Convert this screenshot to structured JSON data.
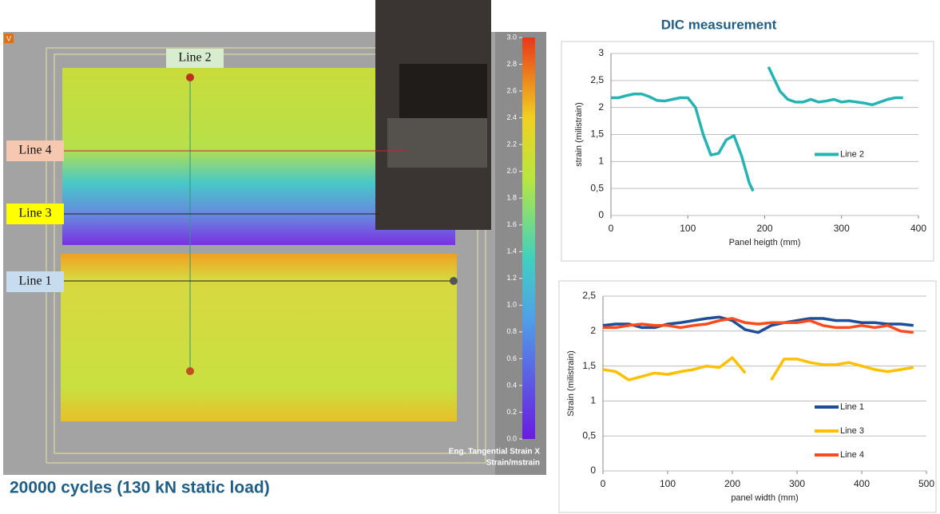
{
  "image": {
    "corner_label": "V",
    "lines": [
      "Line 2",
      "Line 4",
      "Line 3",
      "Line 1"
    ],
    "colorbar": {
      "ticks": [
        {
          "value": 0,
          "label": "0.0"
        },
        {
          "value": 0.2,
          "label": "0.2"
        },
        {
          "value": 0.4,
          "label": "0.4"
        },
        {
          "value": 0.6,
          "label": "0.6"
        },
        {
          "value": 0.8,
          "label": "0.8"
        },
        {
          "value": 1,
          "label": "1.0"
        },
        {
          "value": 1.2,
          "label": "1.2"
        },
        {
          "value": 1.4,
          "label": "1.4"
        },
        {
          "value": 1.6,
          "label": "1.6"
        },
        {
          "value": 1.8,
          "label": "1.8"
        },
        {
          "value": 2,
          "label": "2.0"
        },
        {
          "value": 2.2,
          "label": "2.2"
        },
        {
          "value": 2.4,
          "label": "2.4"
        },
        {
          "value": 2.6,
          "label": "2.6"
        },
        {
          "value": 2.8,
          "label": "2.8"
        },
        {
          "value": 3,
          "label": "3.0"
        }
      ],
      "lim": [
        0,
        3
      ],
      "title": "Eng. Tangential Strain X",
      "unit": "Strain/mstrain"
    },
    "caption": "20000 cycles (130 kN static load)"
  },
  "chart_data": [
    {
      "type": "line",
      "title": "DIC measurement",
      "x_label": "Panel heigth (mm)",
      "y_label": "strain (milistrain)",
      "x": [
        0,
        10,
        20,
        30,
        40,
        50,
        60,
        70,
        80,
        90,
        100,
        110,
        120,
        130,
        140,
        150,
        160,
        170,
        180,
        185,
        195,
        205,
        210,
        220,
        230,
        240,
        250,
        260,
        270,
        280,
        290,
        300,
        310,
        320,
        330,
        340,
        350,
        360,
        370,
        380
      ],
      "series": [
        {
          "name": "Line 2",
          "color": "#26b3b3",
          "values": [
            2.18,
            2.18,
            2.22,
            2.25,
            2.25,
            2.2,
            2.13,
            2.12,
            2.15,
            2.18,
            2.18,
            2.0,
            1.5,
            1.12,
            1.15,
            1.4,
            1.48,
            1.1,
            0.6,
            0.45,
            null,
            2.75,
            2.6,
            2.3,
            2.15,
            2.1,
            2.1,
            2.15,
            2.1,
            2.12,
            2.15,
            2.1,
            2.12,
            2.1,
            2.08,
            2.05,
            2.1,
            2.15,
            2.18,
            2.18
          ]
        }
      ],
      "xlim": [
        0,
        400
      ],
      "xticks": [
        0,
        100,
        200,
        300,
        400
      ],
      "ylim": [
        0,
        3
      ],
      "yticks": [
        0,
        {
          "value": 0.5,
          "label": "0,5"
        },
        1,
        {
          "value": 1.5,
          "label": "1,5"
        },
        2,
        {
          "value": 2.5,
          "label": "2,5"
        },
        3
      ],
      "grid": true,
      "legend": "right"
    },
    {
      "type": "line",
      "x_label": "panel width (mm)",
      "y_label": "Strain (milistrain)",
      "x": [
        0,
        20,
        40,
        60,
        80,
        100,
        120,
        140,
        160,
        180,
        200,
        220,
        240,
        260,
        280,
        300,
        320,
        340,
        360,
        380,
        400,
        420,
        440,
        460,
        480
      ],
      "series": [
        {
          "name": "Line 1",
          "color": "#1f4e99",
          "values": [
            2.08,
            2.1,
            2.1,
            2.05,
            2.05,
            2.1,
            2.12,
            2.15,
            2.18,
            2.2,
            2.15,
            2.02,
            1.98,
            2.08,
            2.12,
            2.15,
            2.18,
            2.18,
            2.15,
            2.15,
            2.12,
            2.12,
            2.1,
            2.1,
            2.08
          ]
        },
        {
          "name": "Line 3",
          "color": "#ffc000",
          "values": [
            1.45,
            1.42,
            1.3,
            1.35,
            1.4,
            1.38,
            1.42,
            1.45,
            1.5,
            1.48,
            1.62,
            1.4,
            null,
            1.3,
            1.6,
            1.6,
            1.55,
            1.52,
            1.52,
            1.55,
            1.5,
            1.45,
            1.42,
            1.45,
            1.48
          ]
        },
        {
          "name": "Line 4",
          "color": "#ff4a1c",
          "values": [
            2.05,
            2.05,
            2.08,
            2.1,
            2.08,
            2.08,
            2.05,
            2.08,
            2.1,
            2.15,
            2.18,
            2.12,
            2.1,
            2.12,
            2.12,
            2.12,
            2.15,
            2.08,
            2.05,
            2.05,
            2.08,
            2.05,
            2.08,
            2.0,
            1.98
          ]
        }
      ],
      "xlim": [
        0,
        500
      ],
      "xticks": [
        0,
        100,
        200,
        300,
        400,
        500
      ],
      "ylim": [
        0,
        2.5
      ],
      "yticks": [
        0,
        {
          "value": 0.5,
          "label": "0,5"
        },
        1,
        {
          "value": 1.5,
          "label": "1,5"
        },
        2,
        {
          "value": 2.5,
          "label": "2,5"
        }
      ],
      "grid": true,
      "legend": "bottom-right"
    }
  ]
}
